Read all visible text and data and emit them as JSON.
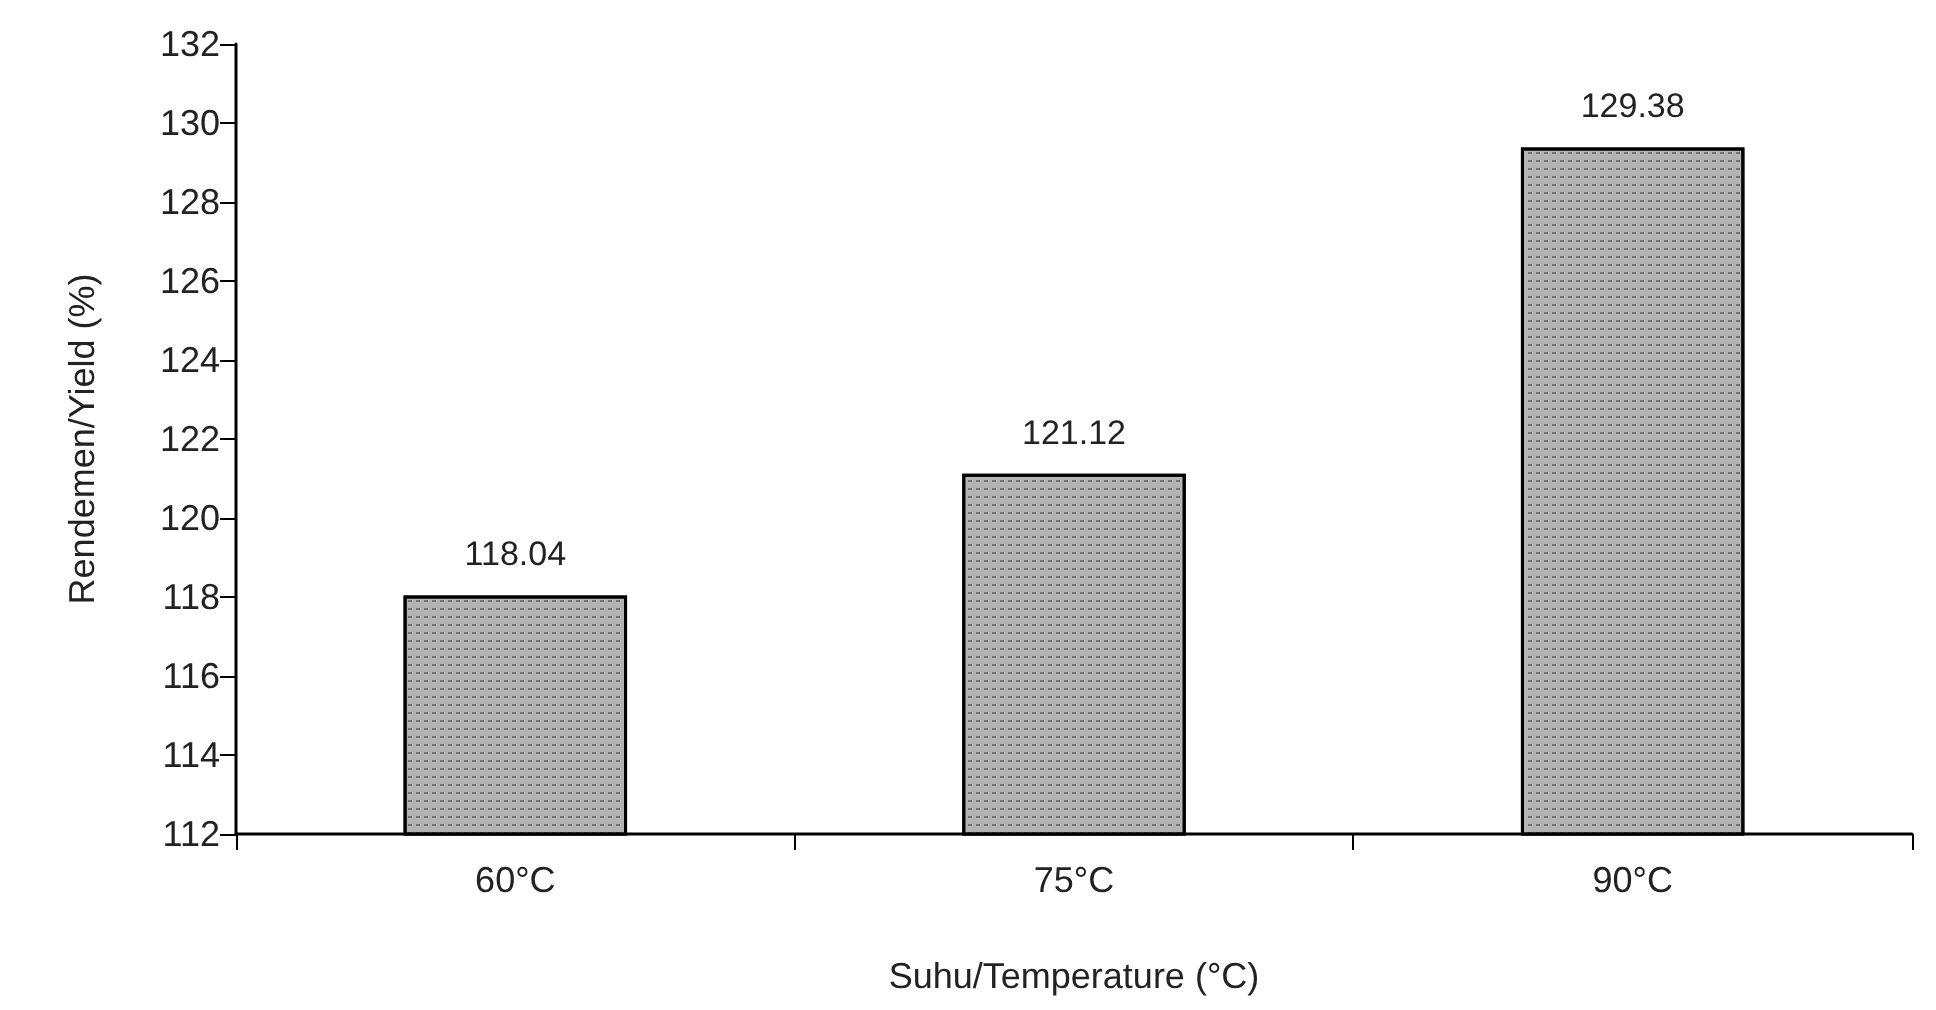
{
  "chart_data": {
    "type": "bar",
    "xlabel": "Suhu/Temperature (°C)",
    "ylabel": "Rendemen/Yield (%)",
    "categories": [
      "60°C",
      "75°C",
      "90°C"
    ],
    "values": [
      118.04,
      121.12,
      129.38
    ],
    "color": "#b4b4b4",
    "ylim": [
      112,
      132
    ],
    "yticks": [
      112,
      114,
      116,
      118,
      120,
      122,
      124,
      126,
      128,
      130,
      132
    ],
    "data_labels": true,
    "grid": false
  }
}
